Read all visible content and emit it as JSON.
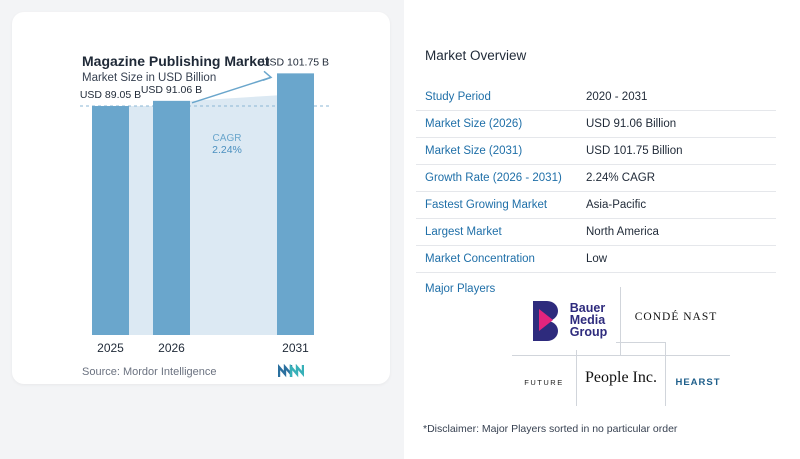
{
  "chart_data": {
    "type": "bar",
    "title": "Magazine Publishing Market",
    "subtitle": "Market Size in USD Billion",
    "categories": [
      "2025",
      "2026",
      "2031"
    ],
    "values": [
      89.05,
      91.06,
      101.75
    ],
    "data_labels": [
      "USD 89.05 B",
      "USD 91.06 B",
      "USD 101.75 B"
    ],
    "cagr_label": "CAGR",
    "cagr_value": "2.24%",
    "ylim": [
      0,
      105
    ],
    "grid": false,
    "colors": {
      "bar": "#6aa6cc",
      "bar_light": "#dce9f3",
      "arrow": "#6aa6cc"
    }
  },
  "source": "Source:  Mordor Intelligence",
  "overview": {
    "title": "Market Overview",
    "rows": [
      {
        "label": "Study Period",
        "value": "2020 - 2031"
      },
      {
        "label": "Market Size (2026)",
        "value": "USD 91.06 Billion"
      },
      {
        "label": "Market Size (2031)",
        "value": "USD 101.75 Billion"
      },
      {
        "label": "Growth Rate (2026 - 2031)",
        "value": "2.24% CAGR"
      },
      {
        "label": "Fastest Growing Market",
        "value": "Asia-Pacific"
      },
      {
        "label": "Largest Market",
        "value": "North America"
      },
      {
        "label": "Market Concentration",
        "value": "Low"
      }
    ]
  },
  "players": {
    "label": "Major Players",
    "logos": {
      "bauer_line1": "Bauer",
      "bauer_line2": "Media",
      "bauer_line3": "Group",
      "conde": "CONDÉ NAST",
      "future": "FUTURE",
      "people": "People Inc.",
      "hearst": "HEARST"
    }
  },
  "disclaimer": "*Disclaimer: Major Players sorted in no particular order",
  "icons": {
    "brand_logo": "mordor-intelligence-logo-icon"
  }
}
